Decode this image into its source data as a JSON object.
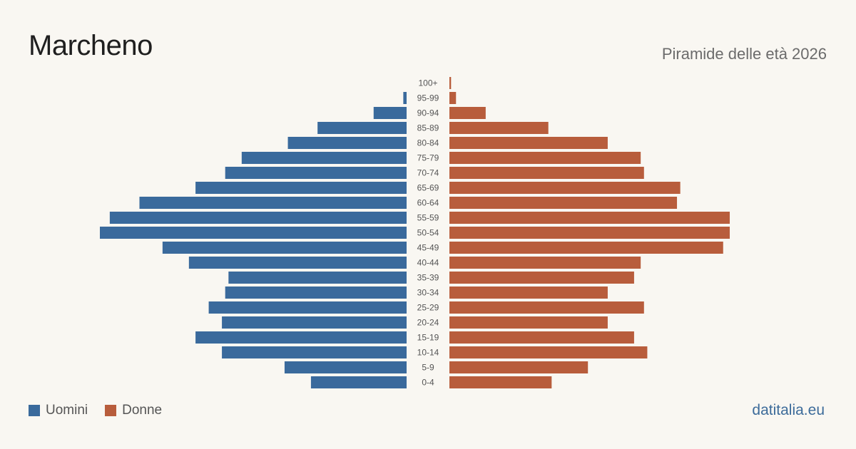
{
  "header": {
    "title": "Marcheno",
    "subtitle": "Piramide delle età 2026"
  },
  "legend": {
    "men_label": "Uomini",
    "women_label": "Donne"
  },
  "footer": {
    "source": "datitalia.eu"
  },
  "colors": {
    "men": "#3a6a9c",
    "women": "#b85d3c",
    "background": "#f9f7f2",
    "tick_text": "#555555"
  },
  "chart_data": {
    "type": "bar",
    "orientation": "horizontal-population-pyramid",
    "categories": [
      "100+",
      "95-99",
      "90-94",
      "85-89",
      "80-84",
      "75-79",
      "70-74",
      "65-69",
      "60-64",
      "55-59",
      "50-54",
      "45-49",
      "40-44",
      "35-39",
      "30-34",
      "25-29",
      "20-24",
      "15-19",
      "10-14",
      "5-9",
      "0-4"
    ],
    "series": [
      {
        "name": "Uomini",
        "values": [
          0,
          1,
          10,
          27,
          36,
          50,
          55,
          64,
          81,
          90,
          93,
          74,
          66,
          54,
          55,
          60,
          56,
          64,
          56,
          37,
          29
        ]
      },
      {
        "name": "Donne",
        "values": [
          0.5,
          2,
          11,
          30,
          48,
          58,
          59,
          70,
          69,
          85,
          85,
          83,
          58,
          56,
          48,
          59,
          48,
          56,
          60,
          42,
          31
        ]
      }
    ],
    "xlim": [
      0,
      93
    ],
    "grid": false,
    "legend_position": "bottom-left"
  }
}
